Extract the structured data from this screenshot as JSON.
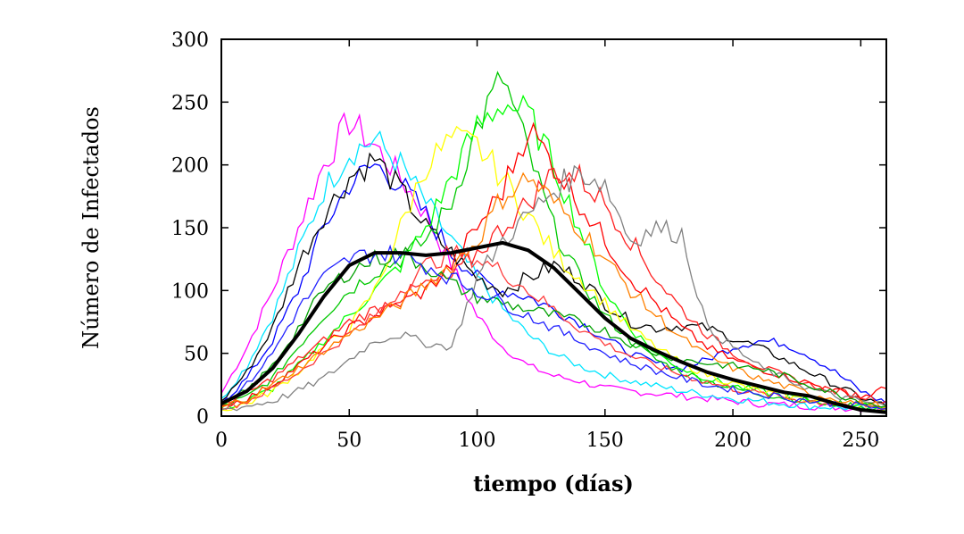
{
  "chart_data": {
    "type": "line",
    "xlabel": "tiempo (días)",
    "ylabel": "Número de Infectados",
    "xlim": [
      0,
      260
    ],
    "ylim": [
      0,
      300
    ],
    "xticks": [
      "0",
      "50",
      "100",
      "150",
      "200",
      "250"
    ],
    "yticks": [
      "0",
      "50",
      "100",
      "150",
      "200",
      "250",
      "300"
    ],
    "grid": false,
    "legend": "none",
    "mean_series": {
      "color": "#000000",
      "x": [
        0,
        10,
        20,
        30,
        40,
        50,
        60,
        70,
        80,
        90,
        100,
        110,
        120,
        130,
        140,
        150,
        160,
        170,
        180,
        190,
        200,
        210,
        220,
        230,
        240,
        250,
        260
      ],
      "y": [
        10,
        20,
        38,
        65,
        95,
        120,
        130,
        130,
        128,
        130,
        134,
        138,
        132,
        118,
        98,
        78,
        62,
        52,
        43,
        35,
        29,
        24,
        19,
        16,
        10,
        5,
        3
      ]
    },
    "series": [
      {
        "color": "#ff00ff",
        "x": [
          0,
          10,
          20,
          30,
          40,
          50,
          60,
          70,
          80,
          90,
          100,
          110,
          120,
          130,
          140,
          150,
          160,
          170,
          180,
          190,
          200,
          210,
          220,
          230,
          240,
          250,
          260
        ],
        "y": [
          18,
          55,
          100,
          150,
          200,
          235,
          215,
          190,
          160,
          120,
          80,
          55,
          40,
          32,
          28,
          22,
          20,
          18,
          16,
          14,
          12,
          10,
          9,
          8,
          7,
          6,
          5
        ]
      },
      {
        "color": "#00e5ff",
        "x": [
          0,
          10,
          20,
          30,
          40,
          50,
          60,
          70,
          80,
          90,
          100,
          110,
          120,
          130,
          140,
          150,
          160,
          170,
          180,
          190,
          200,
          210,
          220,
          230,
          240,
          250,
          260
        ],
        "y": [
          14,
          40,
          80,
          130,
          180,
          210,
          220,
          200,
          170,
          140,
          110,
          85,
          65,
          50,
          40,
          33,
          28,
          24,
          20,
          17,
          14,
          12,
          10,
          8,
          7,
          6,
          5
        ]
      },
      {
        "color": "#0000ff",
        "x": [
          0,
          10,
          20,
          30,
          40,
          50,
          60,
          70,
          80,
          90,
          100,
          110,
          120,
          130,
          140,
          150,
          160,
          170,
          180,
          190,
          200,
          210,
          220,
          230,
          240,
          250,
          260
        ],
        "y": [
          10,
          30,
          60,
          100,
          150,
          185,
          200,
          185,
          160,
          130,
          110,
          100,
          95,
          85,
          75,
          62,
          50,
          42,
          38,
          45,
          55,
          60,
          58,
          48,
          35,
          20,
          10
        ]
      },
      {
        "color": "#000000",
        "x": [
          0,
          10,
          20,
          30,
          40,
          50,
          60,
          70,
          80,
          90,
          100,
          110,
          120,
          130,
          140,
          150,
          160,
          170,
          180,
          190,
          200,
          210,
          220,
          230,
          240,
          250,
          260
        ],
        "y": [
          12,
          35,
          70,
          120,
          160,
          190,
          205,
          180,
          150,
          130,
          110,
          100,
          110,
          120,
          110,
          90,
          75,
          70,
          72,
          70,
          62,
          55,
          45,
          35,
          25,
          15,
          8
        ]
      },
      {
        "color": "#00c800",
        "x": [
          0,
          10,
          20,
          30,
          40,
          50,
          60,
          70,
          80,
          90,
          100,
          110,
          120,
          130,
          140,
          150,
          160,
          170,
          180,
          190,
          200,
          210,
          220,
          230,
          240,
          250,
          260
        ],
        "y": [
          8,
          15,
          30,
          55,
          80,
          100,
          115,
          125,
          140,
          170,
          230,
          270,
          210,
          150,
          110,
          80,
          60,
          45,
          35,
          28,
          22,
          18,
          15,
          12,
          10,
          8,
          6
        ]
      },
      {
        "color": "#00ff00",
        "x": [
          0,
          10,
          20,
          30,
          40,
          50,
          60,
          70,
          80,
          90,
          100,
          110,
          120,
          130,
          140,
          150,
          160,
          170,
          180,
          190,
          200,
          210,
          220,
          230,
          240,
          250,
          260
        ],
        "y": [
          6,
          12,
          22,
          40,
          60,
          80,
          100,
          120,
          150,
          190,
          230,
          250,
          240,
          200,
          150,
          100,
          70,
          50,
          38,
          30,
          24,
          20,
          16,
          13,
          10,
          8,
          6
        ]
      },
      {
        "color": "#ffff00",
        "x": [
          0,
          10,
          20,
          30,
          40,
          50,
          60,
          70,
          80,
          90,
          100,
          110,
          120,
          130,
          140,
          150,
          160,
          170,
          180,
          190,
          200,
          210,
          220,
          230,
          240,
          250,
          260
        ],
        "y": [
          5,
          10,
          20,
          35,
          55,
          70,
          100,
          150,
          200,
          220,
          215,
          190,
          160,
          130,
          110,
          90,
          70,
          55,
          42,
          33,
          26,
          20,
          16,
          13,
          10,
          8,
          6
        ]
      },
      {
        "color": "#ff0000",
        "x": [
          0,
          10,
          20,
          30,
          40,
          50,
          60,
          70,
          80,
          90,
          100,
          110,
          120,
          130,
          140,
          150,
          160,
          170,
          180,
          190,
          200,
          210,
          220,
          230,
          240,
          250,
          260
        ],
        "y": [
          8,
          14,
          25,
          40,
          55,
          70,
          80,
          90,
          100,
          120,
          150,
          180,
          230,
          200,
          170,
          140,
          110,
          90,
          70,
          55,
          45,
          38,
          32,
          26,
          20,
          15,
          22
        ]
      },
      {
        "color": "#ff2020",
        "x": [
          0,
          10,
          20,
          30,
          40,
          50,
          60,
          70,
          80,
          90,
          100,
          110,
          120,
          130,
          140,
          150,
          160,
          170,
          180,
          190,
          200,
          210,
          220,
          230,
          240,
          250,
          260
        ],
        "y": [
          10,
          18,
          30,
          45,
          60,
          75,
          85,
          95,
          105,
          110,
          130,
          150,
          170,
          195,
          190,
          170,
          140,
          110,
          85,
          65,
          50,
          40,
          32,
          25,
          20,
          16,
          12
        ]
      },
      {
        "color": "#ff3c3c",
        "x": [
          0,
          10,
          20,
          30,
          40,
          50,
          60,
          70,
          80,
          90,
          100,
          110,
          120,
          130,
          140,
          150,
          160,
          170,
          180,
          190,
          200,
          210,
          220,
          230,
          240,
          250,
          260
        ],
        "y": [
          6,
          12,
          22,
          35,
          50,
          65,
          80,
          100,
          120,
          130,
          125,
          115,
          100,
          85,
          70,
          58,
          48,
          40,
          33,
          27,
          22,
          18,
          15,
          12,
          10,
          8,
          6
        ]
      },
      {
        "color": "#808080",
        "x": [
          0,
          10,
          20,
          30,
          40,
          50,
          60,
          70,
          80,
          90,
          100,
          110,
          120,
          130,
          140,
          150,
          160,
          170,
          180,
          190,
          200,
          210,
          220,
          230,
          240,
          250,
          260
        ],
        "y": [
          5,
          8,
          12,
          20,
          30,
          45,
          60,
          65,
          58,
          55,
          110,
          140,
          160,
          180,
          195,
          185,
          140,
          150,
          145,
          70,
          55,
          40,
          30,
          22,
          16,
          12,
          8
        ]
      },
      {
        "color": "#ff8000",
        "x": [
          0,
          10,
          20,
          30,
          40,
          50,
          60,
          70,
          80,
          90,
          100,
          110,
          120,
          130,
          140,
          150,
          160,
          170,
          180,
          190,
          200,
          210,
          220,
          230,
          240,
          250,
          260
        ],
        "y": [
          7,
          14,
          25,
          38,
          52,
          65,
          78,
          90,
          105,
          120,
          140,
          175,
          190,
          170,
          150,
          125,
          100,
          80,
          62,
          48,
          38,
          30,
          24,
          18,
          14,
          10,
          8
        ]
      },
      {
        "color": "#00a000",
        "x": [
          0,
          10,
          20,
          30,
          40,
          50,
          60,
          70,
          80,
          90,
          100,
          110,
          120,
          130,
          140,
          150,
          160,
          170,
          180,
          190,
          200,
          210,
          220,
          230,
          240,
          250,
          260
        ],
        "y": [
          9,
          20,
          40,
          70,
          100,
          115,
          125,
          130,
          120,
          105,
          95,
          90,
          85,
          80,
          75,
          68,
          58,
          50,
          45,
          42,
          40,
          38,
          32,
          25,
          18,
          12,
          8
        ]
      },
      {
        "color": "#2020ff",
        "x": [
          0,
          10,
          20,
          30,
          40,
          50,
          60,
          70,
          80,
          90,
          100,
          110,
          120,
          130,
          140,
          150,
          160,
          170,
          180,
          190,
          200,
          210,
          220,
          230,
          240,
          250,
          260
        ],
        "y": [
          10,
          25,
          50,
          85,
          110,
          125,
          130,
          128,
          120,
          110,
          100,
          90,
          80,
          70,
          60,
          50,
          42,
          36,
          30,
          25,
          21,
          18,
          15,
          12,
          10,
          8,
          6
        ]
      }
    ]
  }
}
